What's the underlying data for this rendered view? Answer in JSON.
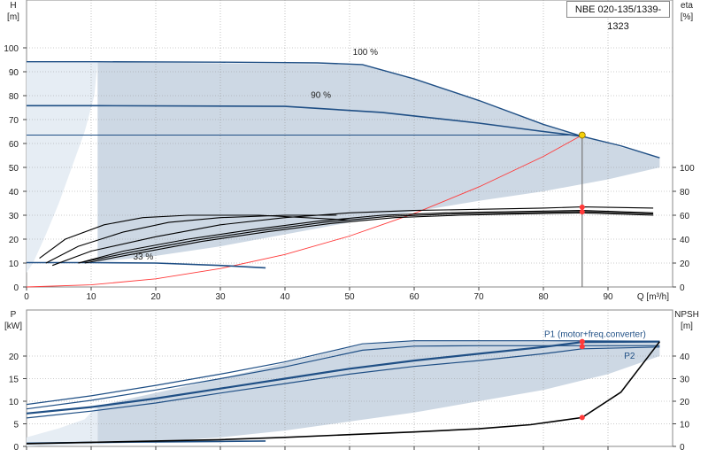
{
  "model": "NBE 020-135/1339-1323",
  "colors": {
    "envelope": "#cdd8e4",
    "envelope_light": "#e6edf4",
    "curve": "#1f4f85",
    "system": "#ff3a3a",
    "black": "#000000",
    "op_point": "#f5d10a",
    "frame": "#888888"
  },
  "chart_data": [
    {
      "id": "qh",
      "type": "line",
      "x_label": "Q [m³/h]",
      "left_axis": {
        "label_line1": "H",
        "label_line2": "[m]",
        "range": [
          0,
          100
        ],
        "ticks": [
          "0",
          "10",
          "20",
          "30",
          "40",
          "50",
          "60",
          "70",
          "80",
          "90",
          "100"
        ]
      },
      "right_axis": {
        "label_line1": "eta",
        "label_line2": "[%]",
        "range": [
          0,
          100
        ],
        "ticks": [
          "0",
          "20",
          "40",
          "60",
          "80",
          "100"
        ],
        "maps_to_left_range": [
          0,
          50
        ]
      },
      "xlim": [
        0,
        100
      ],
      "x_ticks": [
        "0",
        "10",
        "20",
        "30",
        "40",
        "50",
        "60",
        "70",
        "80",
        "90"
      ],
      "grid": true,
      "envelope": [
        [
          11,
          94
        ],
        [
          52,
          93
        ],
        [
          60,
          87
        ],
        [
          70,
          78
        ],
        [
          80,
          68
        ],
        [
          86,
          63
        ],
        [
          98,
          54
        ],
        [
          98,
          50
        ],
        [
          90,
          45
        ],
        [
          80,
          40
        ],
        [
          70,
          36
        ],
        [
          60,
          31.5
        ],
        [
          50,
          27
        ],
        [
          40,
          22
        ],
        [
          30,
          17
        ],
        [
          20,
          13
        ],
        [
          11,
          10.5
        ],
        [
          11,
          94
        ]
      ],
      "light_region": [
        [
          0,
          94
        ],
        [
          11,
          94
        ],
        [
          10.5,
          80
        ],
        [
          9,
          65
        ],
        [
          7,
          50
        ],
        [
          5,
          35
        ],
        [
          3,
          22
        ],
        [
          1,
          10
        ],
        [
          0,
          6
        ]
      ],
      "speed_curves": [
        {
          "label": "100 %",
          "points": [
            [
              0,
              94.2
            ],
            [
              11,
              94.2
            ],
            [
              30,
              94
            ],
            [
              45,
              93.7
            ],
            [
              52,
              93
            ],
            [
              60,
              87
            ],
            [
              70,
              78
            ],
            [
              80,
              68
            ],
            [
              86,
              63
            ],
            [
              92,
              59
            ],
            [
              98,
              54
            ]
          ]
        },
        {
          "label": "90 %",
          "points": [
            [
              0,
              75.8
            ],
            [
              11,
              75.8
            ],
            [
              40,
              75.5
            ],
            [
              55,
              73
            ],
            [
              70,
              68.5
            ],
            [
              80,
              65
            ],
            [
              86,
              63
            ]
          ]
        },
        {
          "label": "33 %",
          "points": [
            [
              0,
              10.2
            ],
            [
              10,
              10.2
            ],
            [
              20,
              10
            ],
            [
              30,
              9
            ],
            [
              37,
              8
            ]
          ]
        }
      ],
      "operating_lines": [
        {
          "points": [
            [
              0,
              63.5
            ],
            [
              86,
              63.5
            ]
          ]
        }
      ],
      "system_curve": [
        [
          0,
          0
        ],
        [
          10,
          0.9
        ],
        [
          20,
          3.4
        ],
        [
          30,
          7.7
        ],
        [
          40,
          13.6
        ],
        [
          50,
          21.3
        ],
        [
          60,
          30.7
        ],
        [
          70,
          41.8
        ],
        [
          80,
          54.6
        ],
        [
          86,
          63.5
        ]
      ],
      "efficiency_curves": [
        {
          "points": [
            [
              3,
              10
            ],
            [
              8,
              17
            ],
            [
              15,
              23
            ],
            [
              22,
              27
            ],
            [
              30,
              29
            ],
            [
              40,
              30
            ],
            [
              48,
              30
            ]
          ]
        },
        {
          "points": [
            [
              2,
              12
            ],
            [
              6,
              20
            ],
            [
              12,
              26
            ],
            [
              18,
              29
            ],
            [
              25,
              30
            ],
            [
              36,
              30
            ],
            [
              50,
              28
            ]
          ]
        },
        {
          "points": [
            [
              4,
              9
            ],
            [
              10,
              15
            ],
            [
              20,
              21
            ],
            [
              30,
              26
            ],
            [
              40,
              29
            ],
            [
              50,
              31
            ],
            [
              60,
              32
            ],
            [
              70,
              32.5
            ],
            [
              80,
              33
            ],
            [
              86,
              33.5
            ],
            [
              97,
              33
            ]
          ]
        },
        {
          "points": [
            [
              8,
              10
            ],
            [
              15,
              15
            ],
            [
              25,
              20
            ],
            [
              35,
              24
            ],
            [
              45,
              27.5
            ],
            [
              55,
              30
            ],
            [
              65,
              31
            ],
            [
              75,
              31.5
            ],
            [
              86,
              32
            ],
            [
              97,
              31
            ]
          ]
        },
        {
          "points": [
            [
              8,
              10
            ],
            [
              16,
              14.5
            ],
            [
              26,
              19.5
            ],
            [
              36,
              23.5
            ],
            [
              46,
              27
            ],
            [
              56,
              29.5
            ],
            [
              66,
              30.5
            ],
            [
              76,
              31
            ],
            [
              86,
              31.5
            ],
            [
              97,
              30.5
            ]
          ]
        },
        {
          "points": [
            [
              9,
              10
            ],
            [
              17,
              14
            ],
            [
              27,
              19
            ],
            [
              37,
              23
            ],
            [
              47,
              26.5
            ],
            [
              57,
              29
            ],
            [
              67,
              30
            ],
            [
              77,
              30.6
            ],
            [
              86,
              31
            ],
            [
              97,
              30
            ]
          ]
        }
      ],
      "operating_point": {
        "q": 86,
        "h": 63.5
      },
      "efficiency_markers": [
        {
          "q": 86,
          "h": 33.4
        },
        {
          "q": 86,
          "h": 31.4
        }
      ],
      "annotations": [
        {
          "text": "100 %",
          "q": 50.5,
          "h": 97
        },
        {
          "text": "90 %",
          "q": 44,
          "h": 79
        },
        {
          "text": "33 %",
          "q": 16.5,
          "h": 11.5
        }
      ]
    },
    {
      "id": "power",
      "type": "line",
      "left_axis": {
        "label_line1": "P",
        "label_line2": "[kW]",
        "range": [
          0,
          25
        ],
        "ticks": [
          "0",
          "5",
          "10",
          "15",
          "20"
        ]
      },
      "right_axis": {
        "label_line1": "NPSH",
        "label_line2": "[m]",
        "range": [
          0,
          60
        ],
        "ticks": [
          "0",
          "10",
          "20",
          "30",
          "40"
        ]
      },
      "xlim": [
        0,
        100
      ],
      "grid": true,
      "envelope": [
        [
          11,
          9
        ],
        [
          30,
          15
        ],
        [
          40,
          18.5
        ],
        [
          52,
          22.5
        ],
        [
          60,
          23.5
        ],
        [
          70,
          23.5
        ],
        [
          80,
          23.3
        ],
        [
          86,
          23.3
        ],
        [
          98,
          23.3
        ],
        [
          98,
          20
        ],
        [
          90,
          16
        ],
        [
          80,
          12.5
        ],
        [
          70,
          10
        ],
        [
          60,
          7.5
        ],
        [
          50,
          5.5
        ],
        [
          40,
          3.5
        ],
        [
          30,
          2
        ],
        [
          20,
          1
        ],
        [
          11,
          0.5
        ],
        [
          11,
          9
        ]
      ],
      "light_region": [
        [
          0,
          2
        ],
        [
          5,
          4
        ],
        [
          9,
          6
        ],
        [
          11,
          9
        ],
        [
          11,
          0.5
        ],
        [
          0,
          0
        ]
      ],
      "power_curves": [
        {
          "points": [
            [
              0,
              9.3
            ],
            [
              10,
              11.2
            ],
            [
              20,
              13.5
            ],
            [
              30,
              16
            ],
            [
              40,
              18.7
            ],
            [
              52,
              22.7
            ],
            [
              60,
              23.4
            ],
            [
              70,
              23.4
            ],
            [
              80,
              23.4
            ],
            [
              98,
              23.3
            ]
          ]
        },
        {
          "points": [
            [
              0,
              8.3
            ],
            [
              10,
              10.2
            ],
            [
              20,
              12.5
            ],
            [
              30,
              15
            ],
            [
              40,
              17.6
            ],
            [
              52,
              21.3
            ],
            [
              60,
              22.2
            ],
            [
              70,
              22.3
            ],
            [
              80,
              22.3
            ],
            [
              98,
              22.3
            ]
          ]
        },
        {
          "points": [
            [
              0,
              7.3
            ],
            [
              10,
              8.7
            ],
            [
              20,
              10.6
            ],
            [
              30,
              12.8
            ],
            [
              40,
              15
            ],
            [
              50,
              17.2
            ],
            [
              60,
              19
            ],
            [
              70,
              20.5
            ],
            [
              80,
              22
            ],
            [
              86,
              23.1
            ],
            [
              98,
              23.2
            ]
          ]
        },
        {
          "points": [
            [
              0,
              6.3
            ],
            [
              10,
              7.8
            ],
            [
              20,
              9.6
            ],
            [
              30,
              11.8
            ],
            [
              40,
              13.9
            ],
            [
              50,
              16
            ],
            [
              60,
              17.7
            ],
            [
              70,
              19
            ],
            [
              80,
              20.5
            ],
            [
              86,
              21.6
            ],
            [
              98,
              22
            ]
          ]
        },
        {
          "points": [
            [
              0,
              0.7
            ],
            [
              10,
              0.9
            ],
            [
              20,
              1
            ],
            [
              30,
              1.1
            ],
            [
              37,
              1.2
            ]
          ]
        }
      ],
      "curve_labels": [
        {
          "text": "P1 (motor+freq.converter)",
          "q": 88,
          "p": 24.8
        },
        {
          "text": "P2",
          "q": 92.5,
          "p": 20
        }
      ],
      "npsh_curve": [
        [
          0,
          0.6
        ],
        [
          10,
          0.9
        ],
        [
          20,
          1.2
        ],
        [
          30,
          1.5
        ],
        [
          40,
          2
        ],
        [
          50,
          2.6
        ],
        [
          60,
          3.2
        ],
        [
          70,
          3.9
        ],
        [
          78,
          4.8
        ],
        [
          82,
          5.6
        ],
        [
          86,
          6.4
        ],
        [
          92,
          12
        ],
        [
          98,
          23.2
        ]
      ],
      "markers": [
        {
          "q": 86,
          "p": 23.2
        },
        {
          "q": 86,
          "p": 22.1
        },
        {
          "q": 86,
          "p": 6.4
        }
      ]
    }
  ]
}
